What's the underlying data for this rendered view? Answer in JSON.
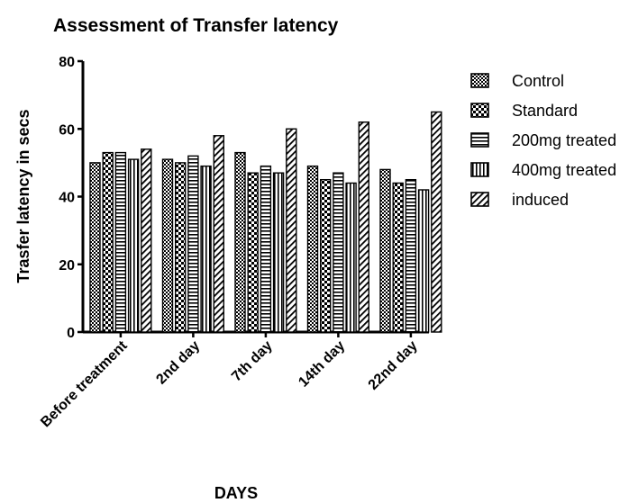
{
  "chart_data": {
    "type": "bar",
    "title": "Assessment of Transfer latency",
    "xlabel": "DAYS",
    "ylabel": "Trasfer latency in secs",
    "ylim": [
      0,
      80
    ],
    "yticks": [
      0,
      20,
      40,
      60,
      80
    ],
    "categories": [
      "Before treatment",
      "2nd day",
      "7th day",
      "14th day",
      "22nd day"
    ],
    "series": [
      {
        "name": "Control",
        "pattern": "checker-fine",
        "values": [
          50,
          51,
          53,
          49,
          48
        ]
      },
      {
        "name": "Standard",
        "pattern": "checker-coarse",
        "values": [
          53,
          50,
          47,
          45,
          44
        ]
      },
      {
        "name": "200mg treated",
        "pattern": "horizontal-lines",
        "values": [
          53,
          52,
          49,
          47,
          45
        ]
      },
      {
        "name": "400mg treated",
        "pattern": "vertical-lines",
        "values": [
          51,
          49,
          47,
          44,
          42
        ]
      },
      {
        "name": "induced",
        "pattern": "diagonal-lines",
        "values": [
          54,
          58,
          60,
          62,
          65
        ]
      }
    ],
    "legend_position": "right",
    "grid": false
  }
}
